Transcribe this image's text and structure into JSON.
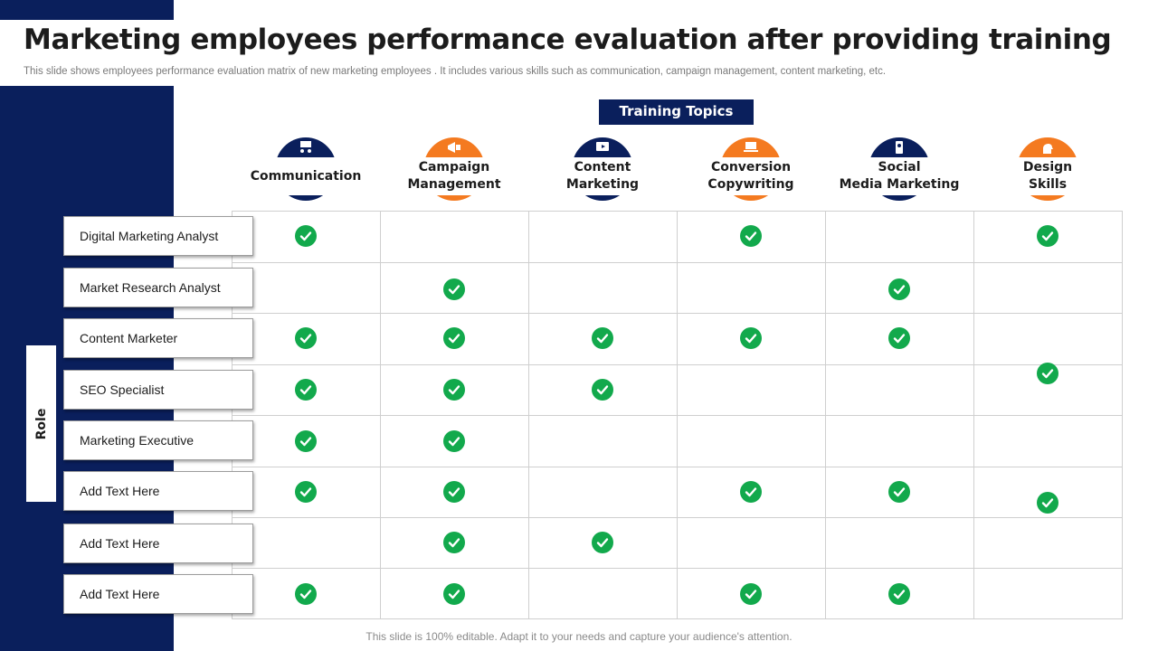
{
  "slide": {
    "title": "Marketing employees performance evaluation after providing training",
    "subtitle": "This slide shows employees performance evaluation matrix of new marketing employees . It includes various skills such as communication, campaign management, content marketing, etc.",
    "footer": "This slide is 100% editable. Adapt it to your needs and capture your audience's attention."
  },
  "matrix": {
    "topics_label": "Training Topics",
    "role_label": "Role",
    "topics": [
      {
        "label": "Communication",
        "icon": "team-presentation-icon",
        "color": "navy"
      },
      {
        "label": "Campaign\nManagement",
        "icon": "megaphone-icon",
        "color": "orange"
      },
      {
        "label": "Content\nMarketing",
        "icon": "video-content-icon",
        "color": "navy"
      },
      {
        "label": "Conversion\nCopywriting",
        "icon": "laptop-copy-icon",
        "color": "orange"
      },
      {
        "label": "Social\nMedia Marketing",
        "icon": "mobile-social-icon",
        "color": "navy"
      },
      {
        "label": "Design\nSkills",
        "icon": "head-idea-icon",
        "color": "orange"
      }
    ],
    "roles": [
      "Digital Marketing Analyst",
      "Market Research Analyst",
      "Content Marketer",
      "SEO Specialist",
      "Marketing Executive",
      "Add Text Here",
      "Add Text Here",
      "Add Text Here"
    ],
    "checks": [
      [
        true,
        false,
        false,
        true,
        false,
        true
      ],
      [
        false,
        true,
        false,
        false,
        true,
        false
      ],
      [
        true,
        true,
        true,
        true,
        true,
        false
      ],
      [
        true,
        true,
        true,
        false,
        false,
        true
      ],
      [
        true,
        true,
        false,
        false,
        false,
        false
      ],
      [
        true,
        true,
        false,
        true,
        true,
        true
      ],
      [
        false,
        true,
        true,
        false,
        false,
        false
      ],
      [
        true,
        true,
        false,
        true,
        true,
        false
      ]
    ]
  },
  "colors": {
    "navy": "#0a1f5c",
    "orange": "#f47a20",
    "check_green": "#12a94c"
  }
}
